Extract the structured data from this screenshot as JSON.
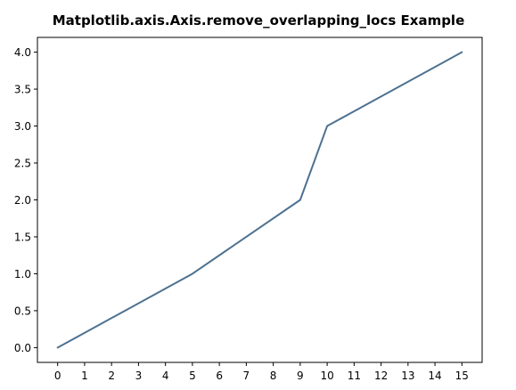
{
  "chart_data": {
    "type": "line",
    "title": "Matplotlib.axis.Axis.remove_overlapping_locs Example",
    "xlabel": "",
    "ylabel": "",
    "x": [
      0,
      5,
      9,
      10,
      15
    ],
    "series": [
      {
        "values": [
          0.0,
          1.0,
          2.0,
          3.0,
          4.0
        ],
        "color": "#4d7190"
      }
    ],
    "xlim": [
      -0.75,
      15.75
    ],
    "ylim": [
      -0.2,
      4.2
    ],
    "xticks": [
      0,
      1,
      2,
      3,
      4,
      5,
      6,
      7,
      8,
      9,
      10,
      11,
      12,
      13,
      14,
      15
    ],
    "xtick_labels": [
      "0",
      "1",
      "2",
      "3",
      "4",
      "5",
      "6",
      "7",
      "8",
      "9",
      "10",
      "11",
      "12",
      "13",
      "14",
      "15"
    ],
    "yticks": [
      0.0,
      0.5,
      1.0,
      1.5,
      2.0,
      2.5,
      3.0,
      3.5,
      4.0
    ],
    "ytick_labels": [
      "0.0",
      "0.5",
      "1.0",
      "1.5",
      "2.0",
      "2.5",
      "3.0",
      "3.5",
      "4.0"
    ],
    "grid": false,
    "legend": "none"
  }
}
